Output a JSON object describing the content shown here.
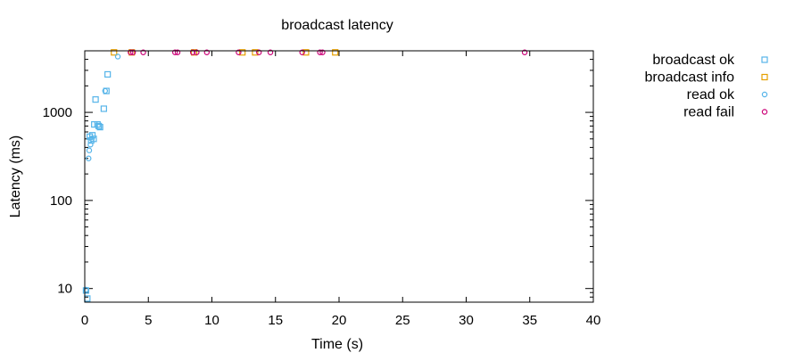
{
  "chart_data": {
    "type": "scatter",
    "title": "broadcast latency",
    "xlabel": "Time (s)",
    "ylabel": "Latency (ms)",
    "xlim": [
      0,
      40
    ],
    "ylim": [
      7,
      5000
    ],
    "yscale": "log",
    "grid": false,
    "legend_position": "outside-right",
    "x_ticks": [
      0,
      5,
      10,
      15,
      20,
      25,
      30,
      35,
      40
    ],
    "y_ticks": [
      {
        "value": 10,
        "label": "10"
      },
      {
        "value": 100,
        "label": "100"
      },
      {
        "value": 1000,
        "label": "1000"
      }
    ],
    "series": [
      {
        "name": "broadcast ok",
        "color": "#56b4e9",
        "marker": "square",
        "points": [
          {
            "x": 0.1,
            "y": 9.5
          },
          {
            "x": 0.2,
            "y": 7.7
          },
          {
            "x": 0.4,
            "y": 530
          },
          {
            "x": 0.5,
            "y": 480
          },
          {
            "x": 0.6,
            "y": 550
          },
          {
            "x": 0.7,
            "y": 500
          },
          {
            "x": 0.75,
            "y": 730
          },
          {
            "x": 0.85,
            "y": 1400
          },
          {
            "x": 1.0,
            "y": 730
          },
          {
            "x": 1.1,
            "y": 700
          },
          {
            "x": 1.2,
            "y": 680
          },
          {
            "x": 1.5,
            "y": 1100
          },
          {
            "x": 1.7,
            "y": 1750
          },
          {
            "x": 1.8,
            "y": 2700
          }
        ]
      },
      {
        "name": "broadcast info",
        "color": "#e69f00",
        "marker": "square",
        "points": [
          {
            "x": 2.3,
            "y": 4800
          },
          {
            "x": 3.7,
            "y": 4800
          },
          {
            "x": 8.6,
            "y": 4800
          },
          {
            "x": 12.4,
            "y": 4800
          },
          {
            "x": 13.4,
            "y": 4800
          },
          {
            "x": 17.4,
            "y": 4800
          },
          {
            "x": 19.7,
            "y": 4800
          }
        ]
      },
      {
        "name": "read ok",
        "color": "#56b4e9",
        "marker": "circle",
        "points": [
          {
            "x": 0.1,
            "y": 9.7
          },
          {
            "x": 0.3,
            "y": 300
          },
          {
            "x": 0.35,
            "y": 370
          },
          {
            "x": 0.45,
            "y": 430
          },
          {
            "x": 0.55,
            "y": 500
          },
          {
            "x": 1.6,
            "y": 1750
          },
          {
            "x": 2.6,
            "y": 4300
          }
        ]
      },
      {
        "name": "read fail",
        "color": "#cc0077",
        "marker": "circle",
        "points": [
          {
            "x": 3.6,
            "y": 4800
          },
          {
            "x": 3.8,
            "y": 4800
          },
          {
            "x": 4.6,
            "y": 4800
          },
          {
            "x": 7.1,
            "y": 4800
          },
          {
            "x": 7.3,
            "y": 4800
          },
          {
            "x": 8.5,
            "y": 4800
          },
          {
            "x": 8.8,
            "y": 4800
          },
          {
            "x": 9.6,
            "y": 4800
          },
          {
            "x": 12.1,
            "y": 4800
          },
          {
            "x": 13.7,
            "y": 4800
          },
          {
            "x": 14.6,
            "y": 4800
          },
          {
            "x": 17.1,
            "y": 4800
          },
          {
            "x": 18.5,
            "y": 4800
          },
          {
            "x": 18.7,
            "y": 4800
          },
          {
            "x": 34.6,
            "y": 4800
          }
        ]
      }
    ]
  }
}
